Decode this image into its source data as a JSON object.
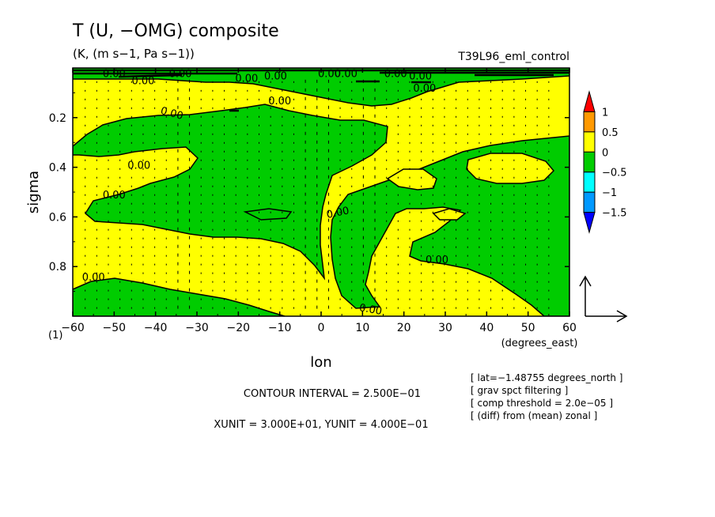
{
  "chart_data": {
    "type": "heatmap",
    "title": "T (U, −OMG) composite",
    "subtitle": "(K, (m s−1, Pa s−1))",
    "experiment": "T39L96_eml_control",
    "xlabel": "lon",
    "xunit_label": "(degrees_east)",
    "ylabel": "sigma",
    "page_marker": "(1)",
    "xlim": [
      -60,
      60
    ],
    "ylim": [
      0.0,
      1.0
    ],
    "y_inverted": true,
    "x_ticks": [
      -60,
      -50,
      -40,
      -30,
      -20,
      -10,
      0,
      10,
      20,
      30,
      40,
      50,
      60
    ],
    "x_tick_labels": [
      "−60",
      "−50",
      "−40",
      "−30",
      "−20",
      "−10",
      "0",
      "10",
      "20",
      "30",
      "40",
      "50",
      "60"
    ],
    "y_ticks": [
      0.2,
      0.4,
      0.6,
      0.8
    ],
    "y_tick_labels": [
      "0.2",
      "0.4",
      "0.6",
      "0.8"
    ],
    "contour_label": "0.00",
    "colorbar": {
      "levels": [
        "1",
        "0.5",
        "0",
        "−0.5",
        "−1",
        "−1.5"
      ],
      "colors": [
        "#ff0000",
        "#ff9900",
        "#ffff00",
        "#00cc00",
        "#00ffff",
        "#0099ff",
        "#0000ff"
      ]
    },
    "fill_colors": {
      "positive": "#ffff00",
      "negative": "#00cc00"
    },
    "footer": {
      "contour_interval": "CONTOUR INTERVAL = 2.500E−01",
      "units": "XUNIT = 3.000E+01, YUNIT = 4.000E−01"
    },
    "notes": [
      "[ lat=−1.48755 degrees_north ]",
      "[ grav spct filtering ]",
      "[ comp threshold = 2.0e−05 ]",
      "[ (diff) from (mean) zonal ]"
    ]
  }
}
